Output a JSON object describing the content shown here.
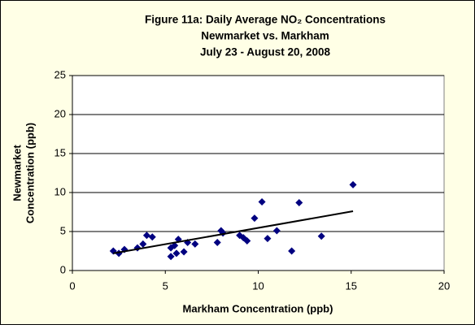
{
  "chart_data": {
    "type": "scatter",
    "title": [
      "Figure 11a: Daily Average NO₂ Concentrations",
      "Newmarket vs. Markham",
      "July 23 - August 20, 2008"
    ],
    "x_label": "Markham Concentration (ppb)",
    "y_label": [
      "Newmarket",
      "Concentration (ppb)"
    ],
    "x": [
      2.2,
      2.5,
      2.8,
      3.5,
      3.8,
      4.0,
      4.3,
      5.3,
      5.3,
      5.5,
      5.6,
      5.7,
      6.0,
      6.2,
      6.6,
      7.8,
      8.0,
      8.1,
      9.0,
      9.2,
      9.4,
      9.8,
      10.2,
      10.5,
      11.0,
      11.8,
      12.2,
      13.4,
      15.1
    ],
    "values": [
      2.5,
      2.2,
      2.7,
      2.9,
      3.4,
      4.5,
      4.3,
      1.8,
      2.9,
      3.2,
      2.2,
      4.0,
      2.4,
      3.6,
      3.4,
      3.6,
      5.1,
      4.8,
      4.5,
      4.2,
      3.8,
      6.7,
      8.8,
      4.1,
      5.1,
      2.5,
      8.7,
      4.4,
      11.0
    ],
    "color": "#000080",
    "trendline": {
      "x": [
        2.2,
        15.1
      ],
      "y": [
        2.2,
        7.6
      ],
      "color": "#000000"
    },
    "xlim": [
      0,
      20
    ],
    "xticks": [
      0,
      5,
      10,
      15,
      20
    ],
    "ylim": [
      0,
      25
    ],
    "yticks": [
      0,
      5,
      10,
      15,
      20,
      25
    ],
    "grid": true
  }
}
